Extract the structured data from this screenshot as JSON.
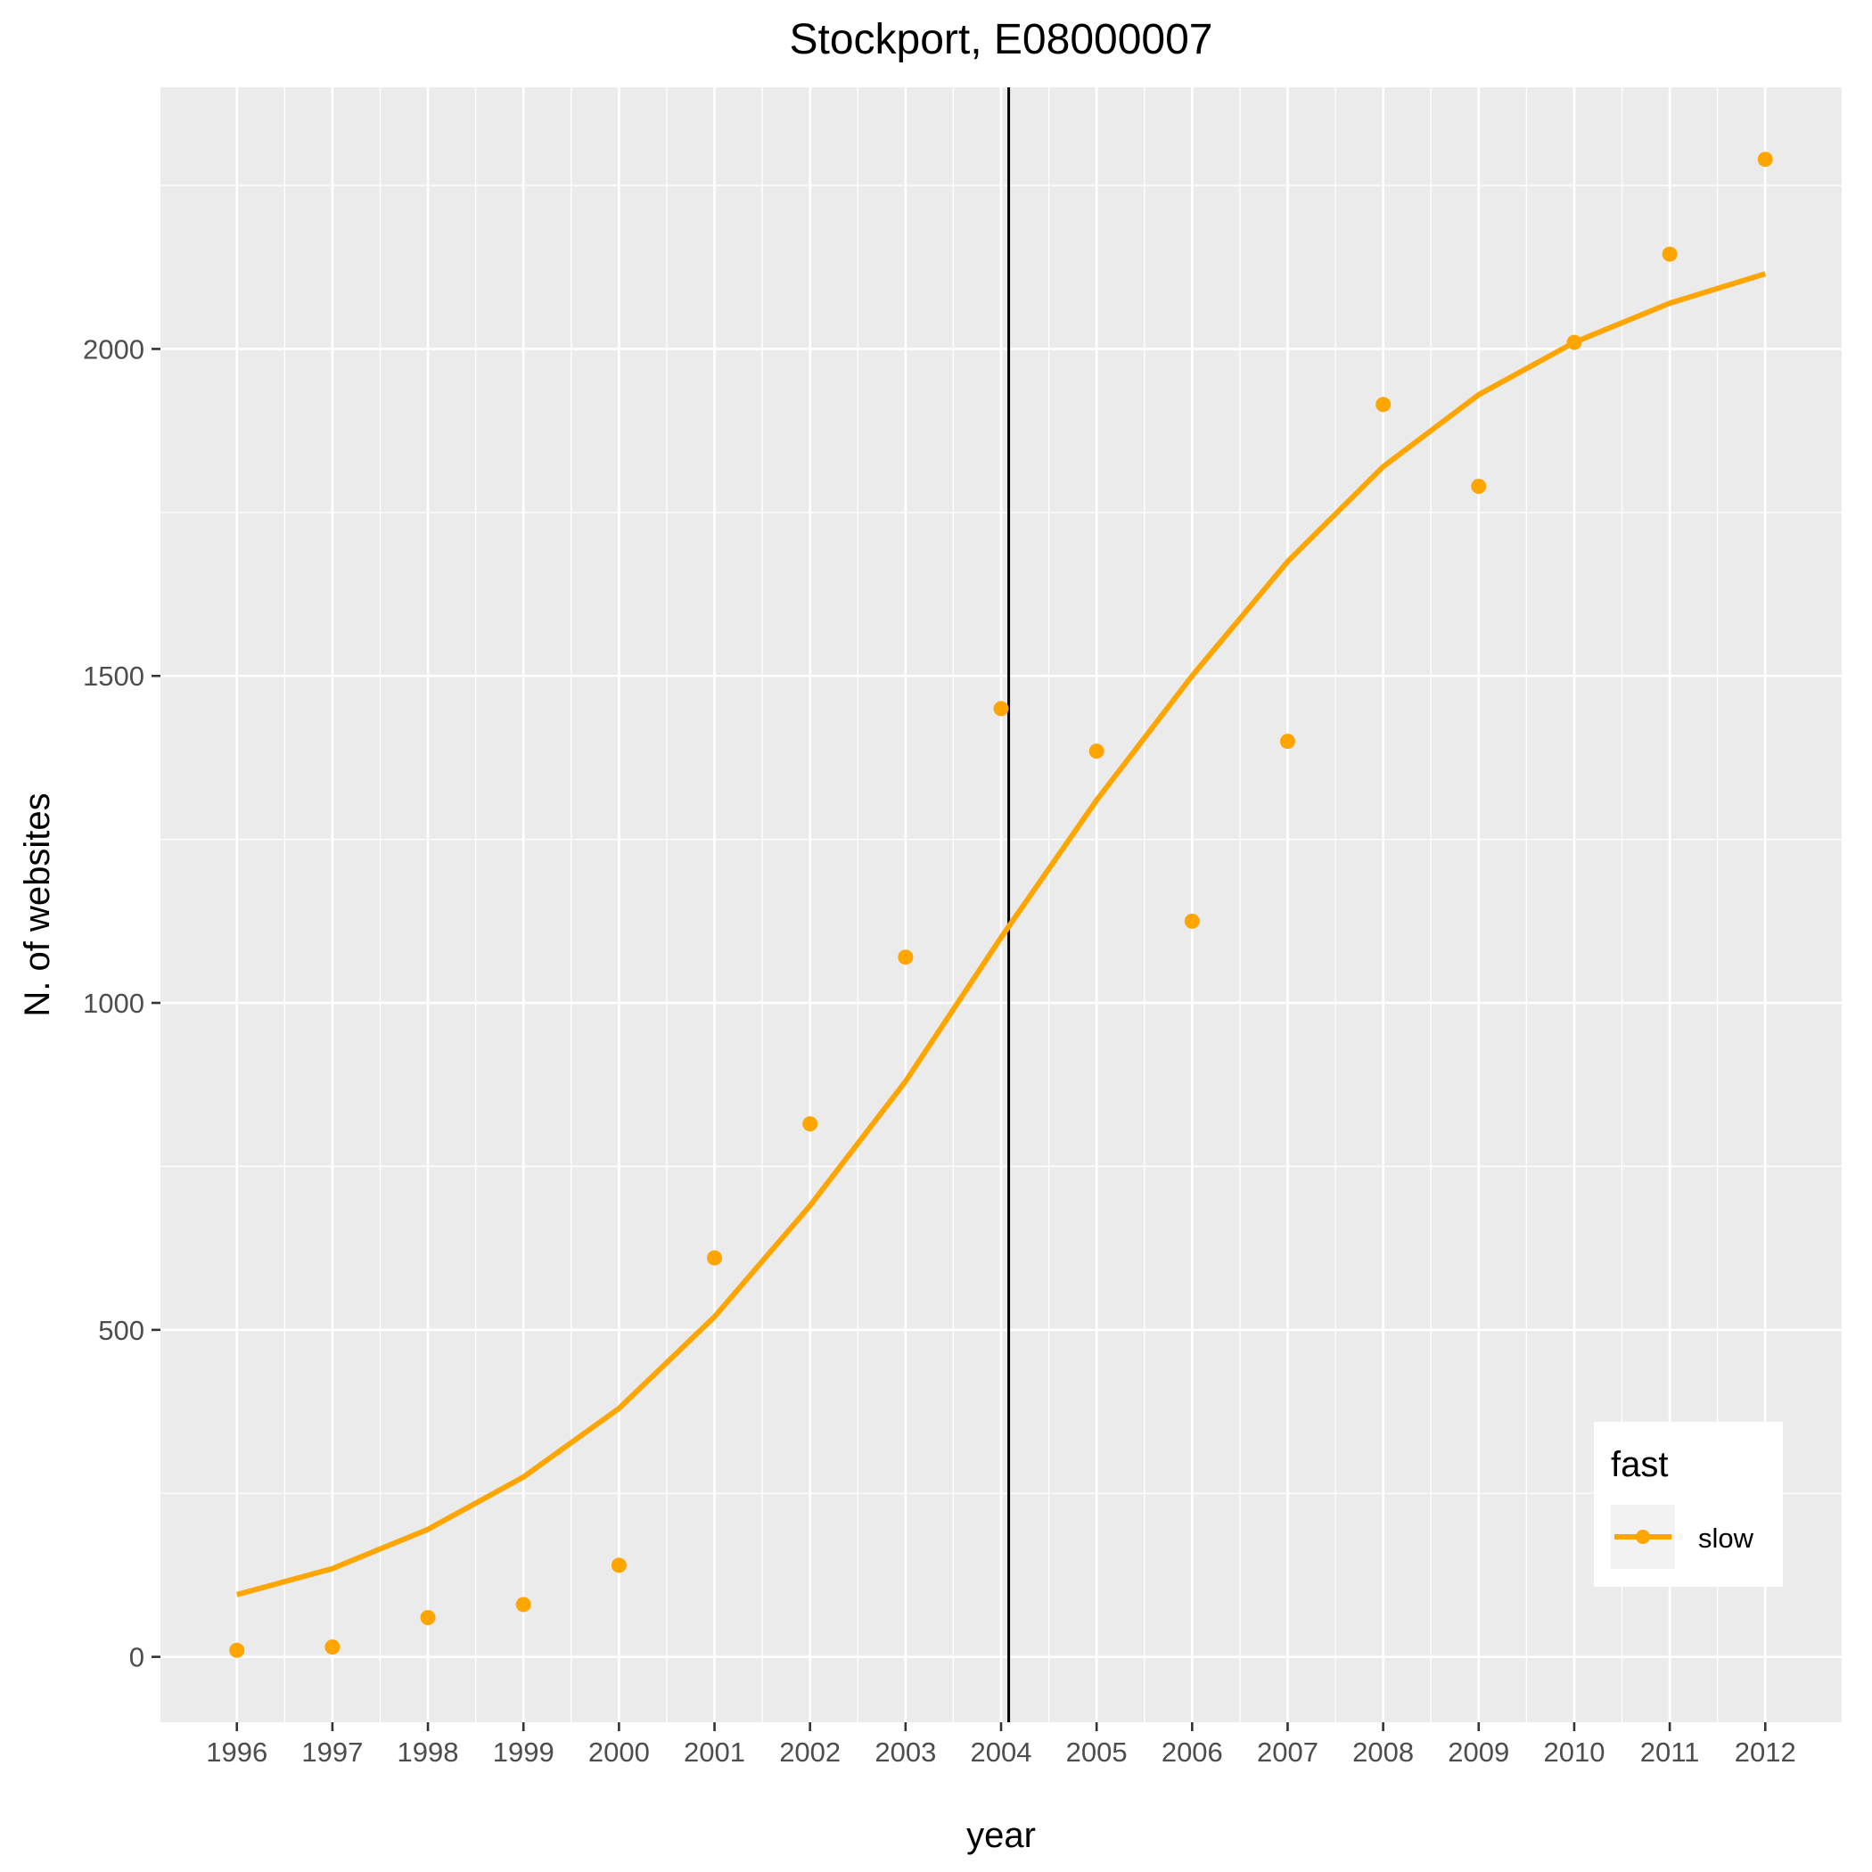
{
  "chart_data": {
    "type": "scatter",
    "title": "Stockport, E08000007",
    "xlabel": "year",
    "ylabel": "N. of websites",
    "x_ticks": [
      "1996",
      "1997",
      "1998",
      "1999",
      "2000",
      "2001",
      "2002",
      "2003",
      "2004",
      "2005",
      "2006",
      "2007",
      "2008",
      "2009",
      "2010",
      "2011",
      "2012"
    ],
    "y_ticks": [
      "0",
      "500",
      "1000",
      "1500",
      "2000"
    ],
    "xlim": [
      1995.2,
      2012.8
    ],
    "ylim": [
      -100,
      2400
    ],
    "grid": true,
    "vertical_line_x": 2004.08,
    "points": {
      "x": [
        1996,
        1997,
        1998,
        1999,
        2000,
        2001,
        2002,
        2003,
        2004,
        2005,
        2006,
        2007,
        2008,
        2009,
        2010,
        2011,
        2012
      ],
      "y": [
        10,
        15,
        60,
        80,
        140,
        610,
        815,
        1070,
        1450,
        1385,
        1125,
        1400,
        1915,
        1790,
        2010,
        2145,
        2290
      ]
    },
    "smooth_line": {
      "x": [
        1996,
        1997,
        1998,
        1999,
        2000,
        2001,
        2002,
        2003,
        2004,
        2005,
        2006,
        2007,
        2008,
        2009,
        2010,
        2011,
        2012
      ],
      "y": [
        95,
        135,
        195,
        275,
        380,
        520,
        690,
        880,
        1100,
        1310,
        1500,
        1675,
        1820,
        1930,
        2010,
        2070,
        2115
      ]
    },
    "color": "#FFA500",
    "legend": {
      "title": "fast",
      "position": "bottom-right",
      "entries": [
        "slow"
      ]
    }
  }
}
